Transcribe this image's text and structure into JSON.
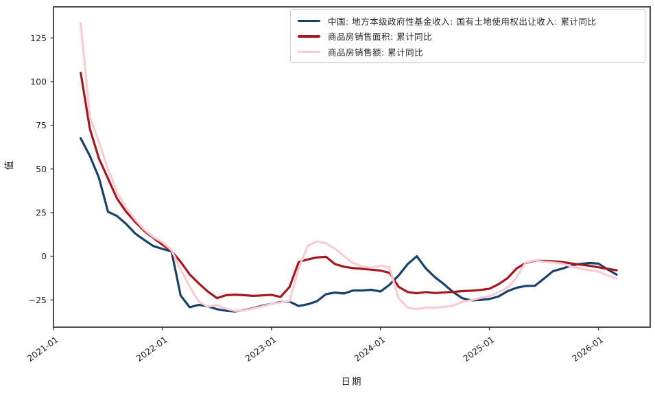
{
  "chart_data": {
    "type": "line",
    "title": "",
    "xlabel": "日期",
    "ylabel": "值",
    "grid": false,
    "legend_position": "upper right",
    "ylim": [
      -40.6,
      142.8
    ],
    "xlim_months": [
      0,
      65.7
    ],
    "x_ticks": {
      "months": [
        0,
        12,
        24,
        36,
        48,
        60
      ],
      "labels": [
        "2021-01",
        "2022-01",
        "2023-01",
        "2024-01",
        "2025-01",
        "2026-01"
      ]
    },
    "y_ticks": {
      "values": [
        -25,
        0,
        25,
        50,
        75,
        100,
        125
      ],
      "labels": [
        "−25",
        "0",
        "25",
        "50",
        "75",
        "100",
        "125"
      ]
    },
    "dates": [
      "2021-04",
      "2021-05",
      "2021-06",
      "2021-07",
      "2021-08",
      "2021-09",
      "2021-10",
      "2021-11",
      "2021-12",
      "2022-01",
      "2022-02",
      "2022-03",
      "2022-04",
      "2022-05",
      "2022-06",
      "2022-07",
      "2022-08",
      "2022-09",
      "2022-10",
      "2022-11",
      "2022-12",
      "2023-01",
      "2023-02",
      "2023-03",
      "2023-04",
      "2023-05",
      "2023-06",
      "2023-07",
      "2023-08",
      "2023-09",
      "2023-10",
      "2023-11",
      "2023-12",
      "2024-01",
      "2024-02",
      "2024-03",
      "2024-04",
      "2024-05",
      "2024-06",
      "2024-07",
      "2024-08",
      "2024-09",
      "2024-10",
      "2024-11",
      "2024-12",
      "2025-01",
      "2025-02",
      "2025-03",
      "2025-04",
      "2025-05",
      "2025-06",
      "2025-07",
      "2025-08",
      "2025-09",
      "2025-10",
      "2025-11",
      "2025-12",
      "2026-01",
      "2026-02",
      "2026-03"
    ],
    "series": [
      {
        "name": "中国: 地方本级政府性基金收入: 国有土地使用权出让收入: 累计同比",
        "color": "#17406a",
        "linewidth": 3.2,
        "values": [
          67.5,
          57.5,
          45,
          25.5,
          23,
          18.5,
          13,
          9.3,
          5.8,
          4.2,
          2.8,
          -22.5,
          -29.2,
          -27.8,
          -28.7,
          -30.3,
          -31.2,
          -31.6,
          -30.9,
          -29.7,
          -28.3,
          -27.2,
          -26.2,
          -26,
          -28.5,
          -27.5,
          -25.8,
          -21.7,
          -20.8,
          -21.3,
          -19.6,
          -19.6,
          -19.2,
          -20.2,
          -16.3,
          -11,
          -4.5,
          0,
          -7,
          -12,
          -16,
          -20.5,
          -24,
          -25.3,
          -25,
          -24.5,
          -23,
          -20,
          -18,
          -17,
          -16.9,
          -12.8,
          -8.5,
          -7.1,
          -5.3,
          -4.4,
          -3.9,
          -4.2,
          -7.5,
          -10.5
        ]
      },
      {
        "name": "商品房销售面积: 累计同比",
        "color": "#a5161f",
        "linewidth": 3.2,
        "values": [
          105,
          73,
          56,
          44.5,
          33,
          25.5,
          19.7,
          14.5,
          10.5,
          6.6,
          3,
          -3.2,
          -10.4,
          -15.6,
          -20.2,
          -24,
          -22.3,
          -22,
          -22.3,
          -22.7,
          -22.4,
          -22.1,
          -23.3,
          -17.5,
          -3.3,
          -1.8,
          -0.7,
          -0.3,
          -4.5,
          -6,
          -6.8,
          -7.2,
          -7.7,
          -8.2,
          -9.5,
          -17.5,
          -20.5,
          -21.2,
          -20.5,
          -21.1,
          -20.7,
          -20.4,
          -20,
          -19.7,
          -19.3,
          -18.6,
          -16,
          -12.5,
          -7,
          -3.8,
          -2.6,
          -2.7,
          -2.9,
          -3.3,
          -4.1,
          -4.8,
          -5.4,
          -6.3,
          -7.2,
          -8
        ]
      },
      {
        "name": "商品房销售额: 累计同比",
        "color": "#f8ccd2",
        "linewidth": 3.2,
        "values": [
          133.5,
          80,
          65.5,
          50,
          36.7,
          27.6,
          21,
          15.2,
          11,
          8,
          3.5,
          -7.6,
          -17.4,
          -26,
          -28.8,
          -28,
          -30,
          -31.3,
          -31.1,
          -29.9,
          -28.7,
          -27.2,
          -26.5,
          -25.5,
          -7,
          6,
          8.5,
          7.4,
          4.3,
          0,
          -4,
          -6,
          -6.5,
          -5.5,
          -6.5,
          -24,
          -29.5,
          -30.2,
          -29.4,
          -29.5,
          -29,
          -28.3,
          -26.1,
          -25.2,
          -23.8,
          -22.9,
          -20.5,
          -18,
          -12,
          -3.5,
          -2.4,
          -3.2,
          -3.6,
          -4.2,
          -5.8,
          -7.1,
          -8,
          -8.7,
          -11,
          -12.7
        ]
      }
    ],
    "colors": {
      "spine": "#3b3b3b",
      "tick_text": "#262626",
      "legend_border": "#cccccc",
      "background": "#ffffff"
    }
  }
}
